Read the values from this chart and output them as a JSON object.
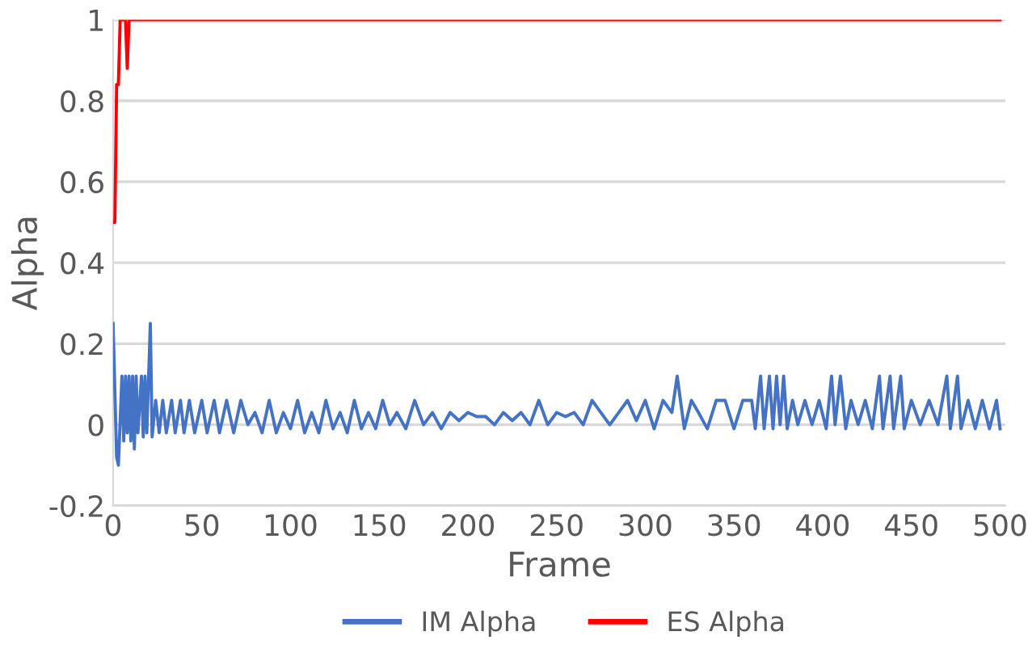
{
  "chart_data": {
    "type": "line",
    "xlabel": "Frame",
    "ylabel": "Alpha",
    "xlim": [
      0,
      503
    ],
    "ylim": [
      -0.2,
      1
    ],
    "xticks": [
      0,
      50,
      100,
      150,
      200,
      250,
      300,
      350,
      400,
      450,
      500
    ],
    "yticks": [
      -0.2,
      0,
      0.2,
      0.4,
      0.6,
      0.8,
      1
    ],
    "grid": "y",
    "legend": "bottom",
    "marker": "none",
    "line_style": "solid",
    "series": [
      {
        "name": "IM Alpha",
        "color": "#4472c4",
        "x": [
          0,
          2,
          3,
          5,
          6,
          7,
          8,
          9,
          10,
          11,
          12,
          13,
          14,
          16,
          17,
          18,
          19,
          21,
          22,
          24,
          26,
          28,
          30,
          33,
          35,
          38,
          40,
          43,
          46,
          50,
          53,
          57,
          60,
          64,
          68,
          72,
          76,
          80,
          84,
          88,
          92,
          96,
          100,
          104,
          108,
          112,
          116,
          120,
          124,
          128,
          132,
          136,
          140,
          144,
          148,
          152,
          156,
          160,
          165,
          170,
          175,
          180,
          185,
          190,
          195,
          200,
          205,
          210,
          215,
          220,
          225,
          230,
          235,
          240,
          245,
          250,
          255,
          260,
          265,
          270,
          275,
          280,
          285,
          290,
          295,
          300,
          305,
          310,
          315,
          318,
          322,
          326,
          330,
          335,
          340,
          345,
          350,
          355,
          360,
          362,
          365,
          367,
          370,
          372,
          374,
          376,
          378,
          380,
          383,
          386,
          390,
          394,
          398,
          402,
          405,
          407,
          410,
          413,
          416,
          420,
          424,
          428,
          432,
          434,
          438,
          440,
          444,
          446,
          450,
          455,
          460,
          465,
          470,
          472,
          476,
          478,
          482,
          486,
          490,
          494,
          498,
          500
        ],
        "values": [
          0.25,
          -0.08,
          -0.1,
          0.12,
          -0.04,
          0.12,
          -0.02,
          0.12,
          -0.04,
          0.12,
          -0.06,
          0.12,
          -0.02,
          0.12,
          -0.03,
          0.12,
          -0.02,
          0.25,
          -0.03,
          0.06,
          -0.02,
          0.06,
          -0.02,
          0.06,
          -0.02,
          0.06,
          -0.02,
          0.06,
          -0.02,
          0.06,
          -0.02,
          0.06,
          -0.02,
          0.06,
          -0.02,
          0.06,
          0,
          0.03,
          -0.02,
          0.06,
          -0.02,
          0.03,
          -0.01,
          0.06,
          -0.02,
          0.03,
          -0.02,
          0.06,
          -0.01,
          0.03,
          -0.02,
          0.06,
          -0.01,
          0.03,
          -0.01,
          0.06,
          0,
          0.03,
          -0.01,
          0.06,
          0,
          0.03,
          -0.01,
          0.03,
          0.01,
          0.03,
          0.02,
          0.02,
          0,
          0.03,
          0.01,
          0.03,
          0,
          0.06,
          0,
          0.03,
          0.02,
          0.03,
          0,
          0.06,
          0.03,
          0,
          0.03,
          0.06,
          0.01,
          0.06,
          -0.01,
          0.06,
          0.03,
          0.12,
          -0.01,
          0.06,
          0.03,
          -0.01,
          0.06,
          0.06,
          -0.01,
          0.06,
          0.06,
          -0.01,
          0.12,
          -0.01,
          0.12,
          -0.01,
          0.12,
          0,
          0.12,
          -0.01,
          0.06,
          0,
          0.06,
          0,
          0.06,
          -0.01,
          0.12,
          0,
          0.12,
          -0.01,
          0.06,
          0,
          0.06,
          -0.01,
          0.12,
          -0.01,
          0.12,
          -0.01,
          0.12,
          -0.01,
          0.06,
          0,
          0.06,
          0,
          0.12,
          -0.01,
          0.12,
          -0.01,
          0.06,
          -0.01,
          0.06,
          -0.01,
          0.06,
          -0.01
        ]
      },
      {
        "name": "ES Alpha",
        "color": "#ff0000",
        "x": [
          0,
          1,
          2,
          3,
          4,
          7,
          8,
          9,
          500
        ],
        "values": [
          0.5,
          0.5,
          0.84,
          0.84,
          1,
          1,
          0.88,
          1,
          1
        ]
      }
    ]
  }
}
